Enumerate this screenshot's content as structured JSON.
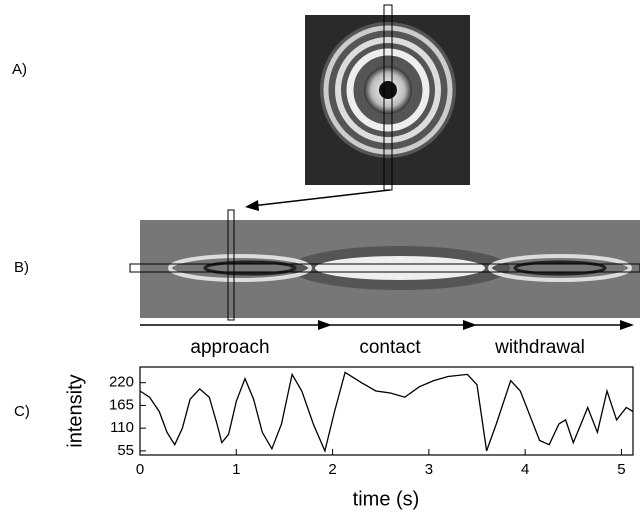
{
  "panels": {
    "a": "A)",
    "b": "B)",
    "c": "C)"
  },
  "phases": [
    "approach",
    "contact",
    "withdrawal"
  ],
  "chart_data": {
    "type": "line",
    "x": [
      0,
      0.1,
      0.2,
      0.28,
      0.36,
      0.44,
      0.52,
      0.62,
      0.72,
      0.8,
      0.85,
      0.92,
      1.0,
      1.09,
      1.18,
      1.27,
      1.37,
      1.47,
      1.58,
      1.68,
      1.8,
      1.92,
      2.02,
      2.13,
      2.3,
      2.45,
      2.6,
      2.75,
      2.9,
      3.05,
      3.2,
      3.4,
      3.5,
      3.6,
      3.7,
      3.85,
      3.95,
      4.05,
      4.15,
      4.25,
      4.35,
      4.42,
      4.5,
      4.58,
      4.65,
      4.75,
      4.85,
      4.95,
      5.05,
      5.12
    ],
    "values": [
      200,
      185,
      150,
      100,
      70,
      110,
      180,
      205,
      185,
      120,
      75,
      95,
      175,
      230,
      180,
      100,
      60,
      120,
      240,
      200,
      120,
      55,
      150,
      245,
      220,
      200,
      195,
      185,
      210,
      225,
      235,
      240,
      215,
      55,
      120,
      225,
      200,
      140,
      80,
      70,
      120,
      130,
      75,
      120,
      160,
      100,
      200,
      130,
      160,
      150
    ],
    "color": "#000000",
    "xlim": [
      0,
      5.12
    ],
    "ylim": [
      45,
      258
    ],
    "xticks": [
      0,
      1,
      2,
      3,
      4,
      5
    ],
    "yticks": [
      55,
      110,
      165,
      220
    ],
    "xlabel": "time (s)",
    "ylabel": "intensity"
  }
}
